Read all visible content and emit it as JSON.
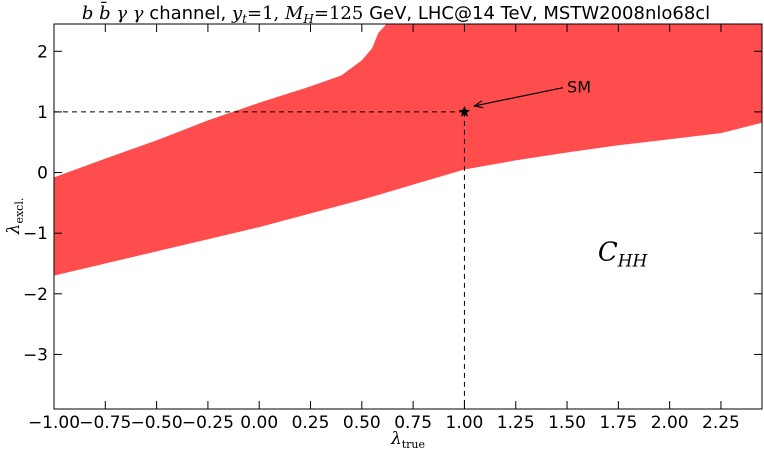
{
  "chart_data": {
    "type": "area",
    "title": {
      "process": "b b̄ γ γ",
      "channel_word": "channel,",
      "yt_label": "y",
      "yt_sub": "t",
      "yt_value": "=1,",
      "mh_label": "M",
      "mh_sub": "H",
      "mh_value": "=125",
      "rest": "GeV, LHC@14 TeV, MSTW2008nlo68cl"
    },
    "xlabel": {
      "symbol": "λ",
      "sub": "true"
    },
    "ylabel": {
      "symbol": "λ",
      "sub": "excl."
    },
    "xlim": [
      -1.0,
      2.45
    ],
    "ylim": [
      -3.9,
      2.45
    ],
    "xticks": [
      -1.0,
      -0.75,
      -0.5,
      -0.25,
      0.0,
      0.25,
      0.5,
      0.75,
      1.0,
      1.25,
      1.5,
      1.75,
      2.0,
      2.25
    ],
    "xtick_labels": [
      "−1.00",
      "−0.75",
      "−0.50",
      "−0.25",
      "0.00",
      "0.25",
      "0.50",
      "0.75",
      "1.00",
      "1.25",
      "1.50",
      "1.75",
      "2.00",
      "2.25"
    ],
    "yticks": [
      -3,
      -2,
      -1,
      0,
      1,
      2
    ],
    "ytick_labels": [
      "−3",
      "−2",
      "−1",
      "0",
      "1",
      "2"
    ],
    "grid": false,
    "band": {
      "color": "#ff4c4c",
      "upper": {
        "x": [
          -1.0,
          -0.75,
          -0.5,
          -0.25,
          0.0,
          0.25,
          0.4,
          0.5,
          0.55,
          0.58,
          0.62,
          2.45
        ],
        "y": [
          -0.08,
          0.23,
          0.53,
          0.86,
          1.15,
          1.42,
          1.6,
          1.85,
          2.05,
          2.3,
          2.45,
          2.45
        ]
      },
      "lower": {
        "x": [
          -1.0,
          -0.5,
          0.0,
          0.5,
          1.0,
          1.25,
          1.5,
          1.75,
          2.0,
          2.25,
          2.45
        ],
        "y": [
          -1.7,
          -1.3,
          -0.9,
          -0.45,
          0.05,
          0.2,
          0.33,
          0.45,
          0.55,
          0.65,
          0.82
        ]
      }
    },
    "sm_point": {
      "x": 1.0,
      "y": 1.0,
      "label": "SM",
      "label_x": 1.5,
      "label_y": 1.4
    },
    "region_label": {
      "main": "C",
      "sub": "HH",
      "x": 1.65,
      "y": -1.45
    }
  }
}
